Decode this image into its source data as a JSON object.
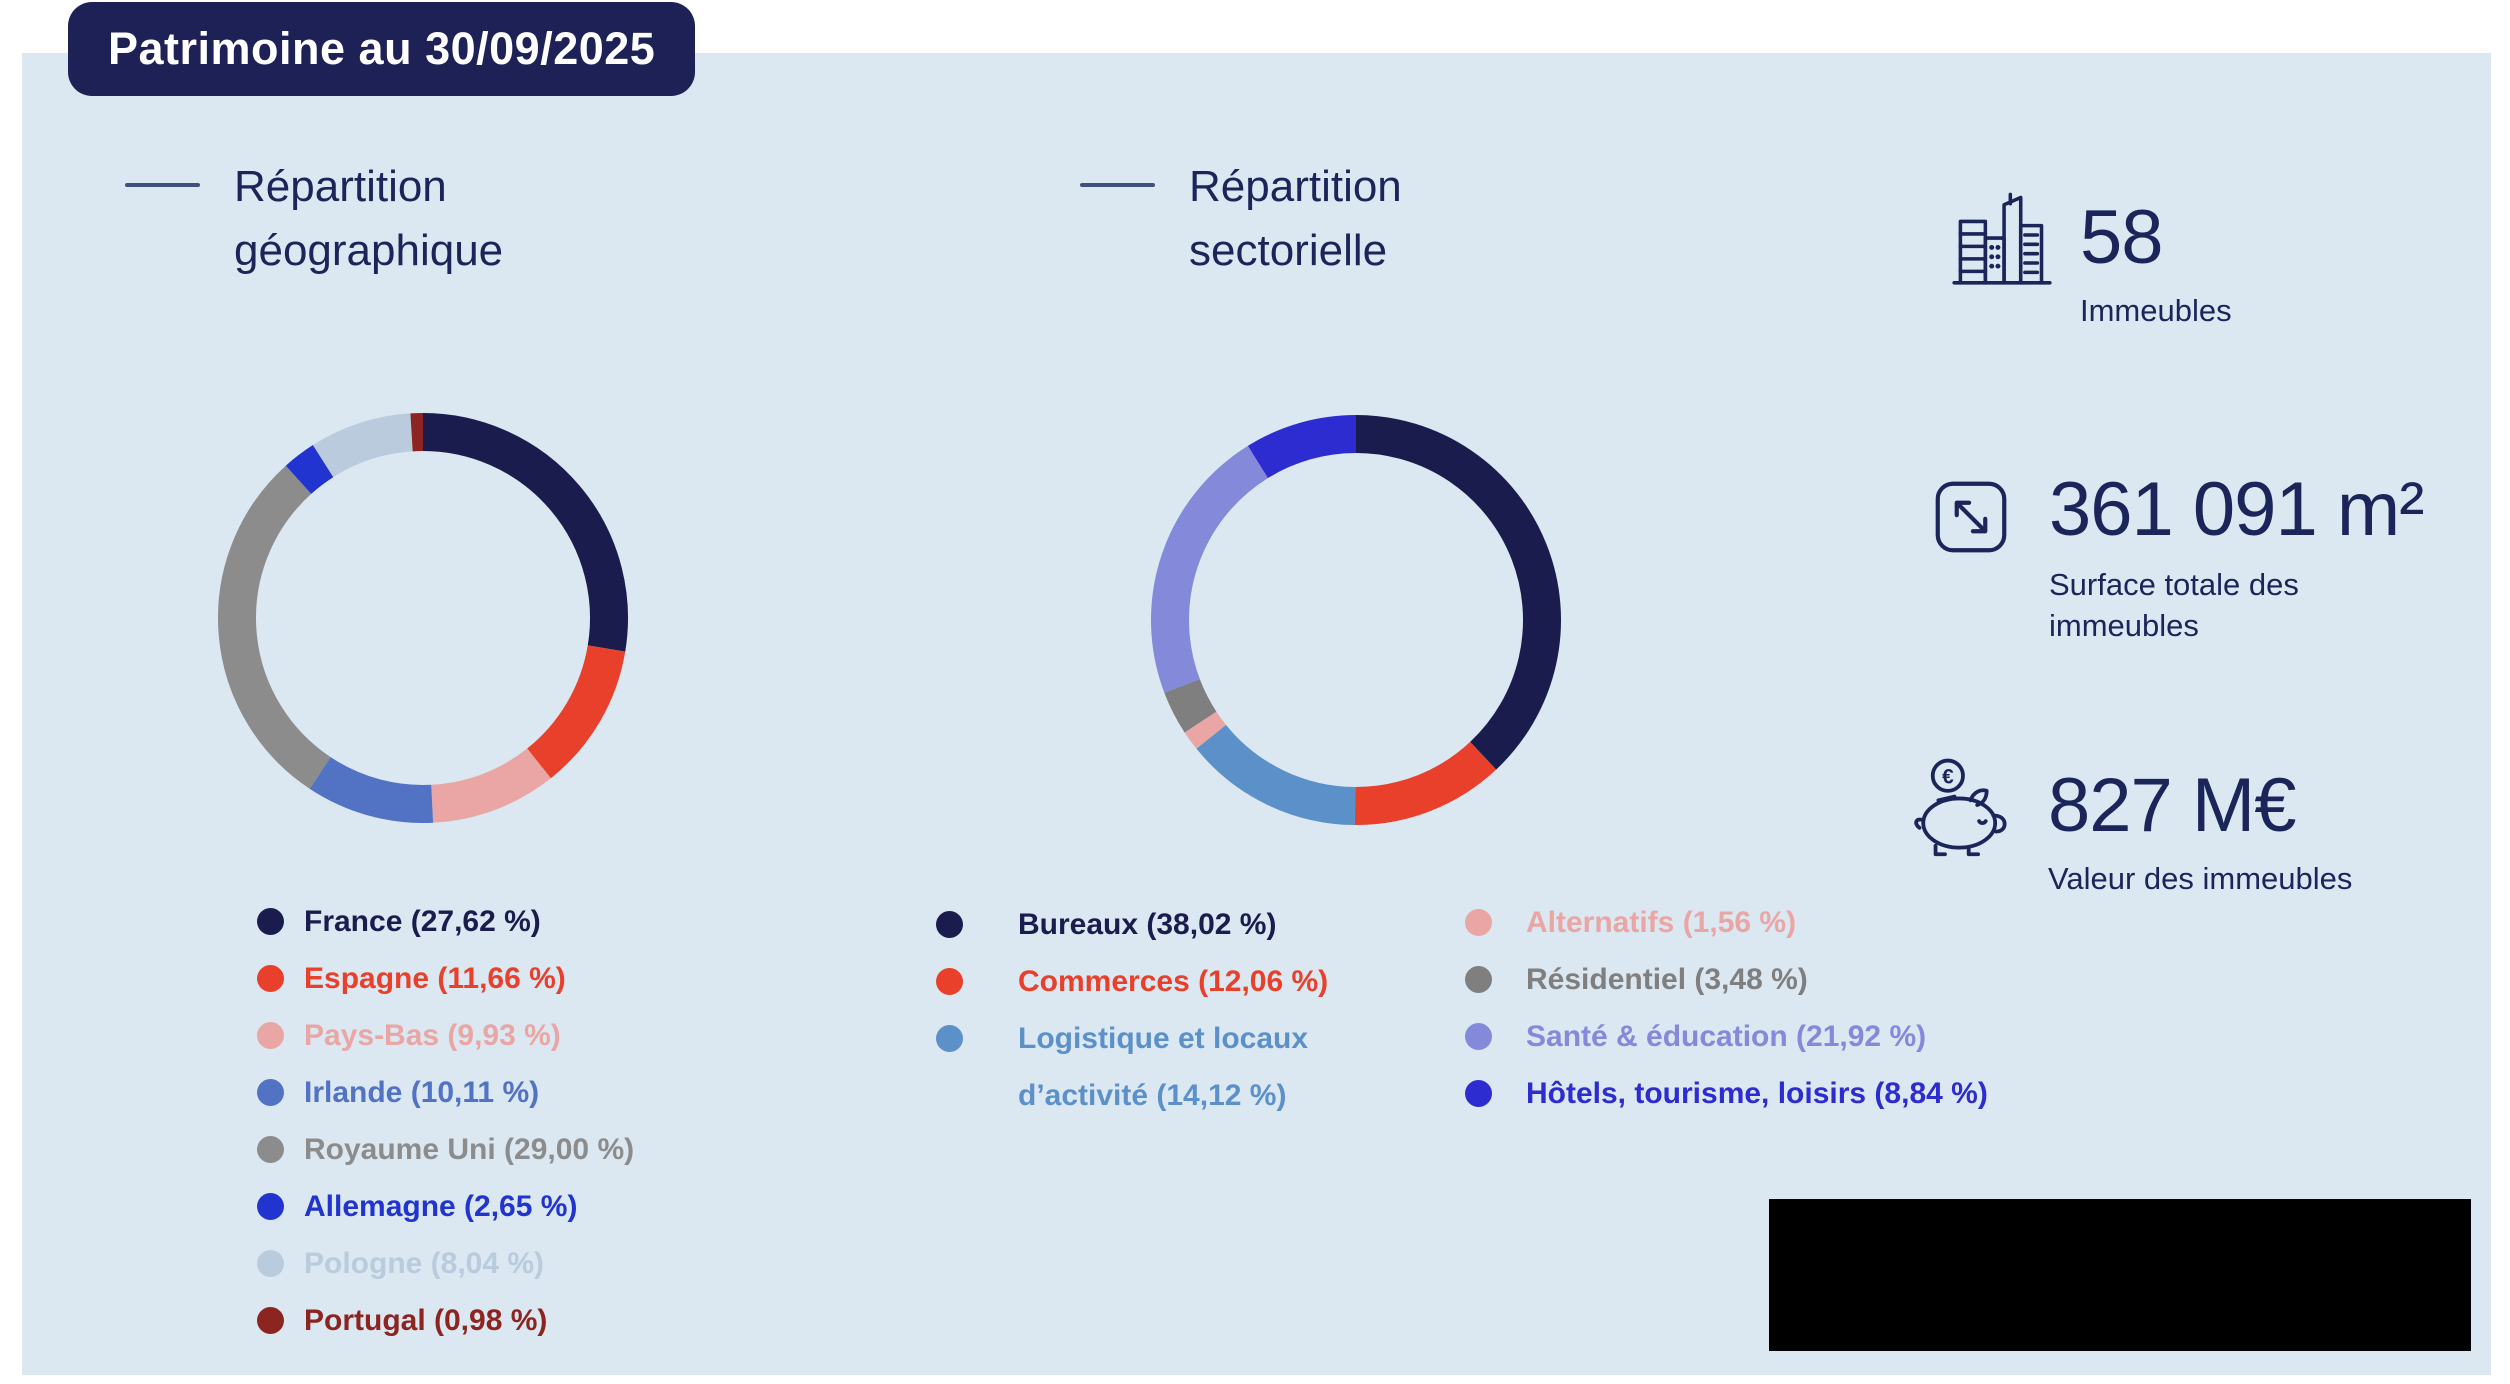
{
  "badge": {
    "title": "Patrimoine au 30/09/2025"
  },
  "geo": {
    "title": "Répartition géographique"
  },
  "sector": {
    "title": "Répartition sectorielle"
  },
  "colors": {
    "page_bg": "#ffffff",
    "panel_bg": "#dbe7f1",
    "badge_bg": "#1e2156",
    "text_navy": "#1b2559",
    "title_dash": "#40507c",
    "redacted_block": "#000000"
  },
  "legend": {
    "geo": [
      {
        "label": "France (27,62 %)",
        "color": "#1b1c4e"
      },
      {
        "label": "Espagne (11,66 %)",
        "color": "#e8402b"
      },
      {
        "label": "Pays-Bas (9,93 %)",
        "color": "#e9a6a4"
      },
      {
        "label": "Irlande (10,11 %)",
        "color": "#5272c4"
      },
      {
        "label": "Royaume Uni (29,00 %)",
        "color": "#8c8c8c"
      },
      {
        "label": "Allemagne (2,65 %)",
        "color": "#2134cf"
      },
      {
        "label": "Pologne (8,04 %)",
        "color": "#b9cbdd"
      },
      {
        "label": "Portugal (0,98 %)",
        "color": "#8c2420"
      }
    ],
    "sector_col1": [
      {
        "label": "Bureaux (38,02 %)",
        "color": "#1b1c4e"
      },
      {
        "label": "Commerces (12,06 %)",
        "color": "#e8402b"
      },
      {
        "label": "Logistique et locaux d’activité (14,12 %)",
        "color": "#5b90c9"
      }
    ],
    "sector_col2": [
      {
        "label": "Alternatifs (1,56 %)",
        "color": "#e9a6a4"
      },
      {
        "label": "Résidentiel (3,48 %)",
        "color": "#7f7f7f"
      },
      {
        "label": "Santé & éducation (21,92 %)",
        "color": "#8489d9"
      },
      {
        "label": "Hôtels, tourisme, loisirs (8,84 %)",
        "color": "#2c2cd0"
      }
    ]
  },
  "stats": [
    {
      "icon": "buildings-icon",
      "value": "58",
      "label": "Immeubles"
    },
    {
      "icon": "expand-icon",
      "value": "361 091 m²",
      "label": "Surface totale des immeubles"
    },
    {
      "icon": "piggy-bank-icon",
      "value": "827 M€",
      "label": "Valeur des immeubles"
    }
  ],
  "icons": {
    "euro_glyph": "€"
  },
  "chart_data": [
    {
      "type": "pie",
      "variant": "donut",
      "title": "Répartition géographique",
      "labels": [
        "France",
        "Espagne",
        "Pays-Bas",
        "Irlande",
        "Royaume Uni",
        "Allemagne",
        "Pologne",
        "Portugal"
      ],
      "values": [
        27.62,
        11.66,
        9.93,
        10.11,
        29.0,
        2.65,
        8.04,
        0.98
      ],
      "colors": [
        "#1b1c4e",
        "#e8402b",
        "#e9a6a4",
        "#5272c4",
        "#8c8c8c",
        "#2134cf",
        "#b9cbdd",
        "#8c2420"
      ],
      "unit": "%",
      "start_angle_deg": 0,
      "direction": "clockwise",
      "legend_position": "below"
    },
    {
      "type": "pie",
      "variant": "donut",
      "title": "Répartition sectorielle",
      "labels": [
        "Bureaux",
        "Commerces",
        "Logistique et locaux d’activité",
        "Alternatifs",
        "Résidentiel",
        "Santé & éducation",
        "Hôtels, tourisme, loisirs"
      ],
      "values": [
        38.02,
        12.06,
        14.12,
        1.56,
        3.48,
        21.92,
        8.84
      ],
      "colors": [
        "#1b1c4e",
        "#e8402b",
        "#5b90c9",
        "#e9a6a4",
        "#7f7f7f",
        "#8489d9",
        "#2c2cd0"
      ],
      "unit": "%",
      "start_angle_deg": 0,
      "direction": "clockwise",
      "legend_position": "below"
    }
  ]
}
